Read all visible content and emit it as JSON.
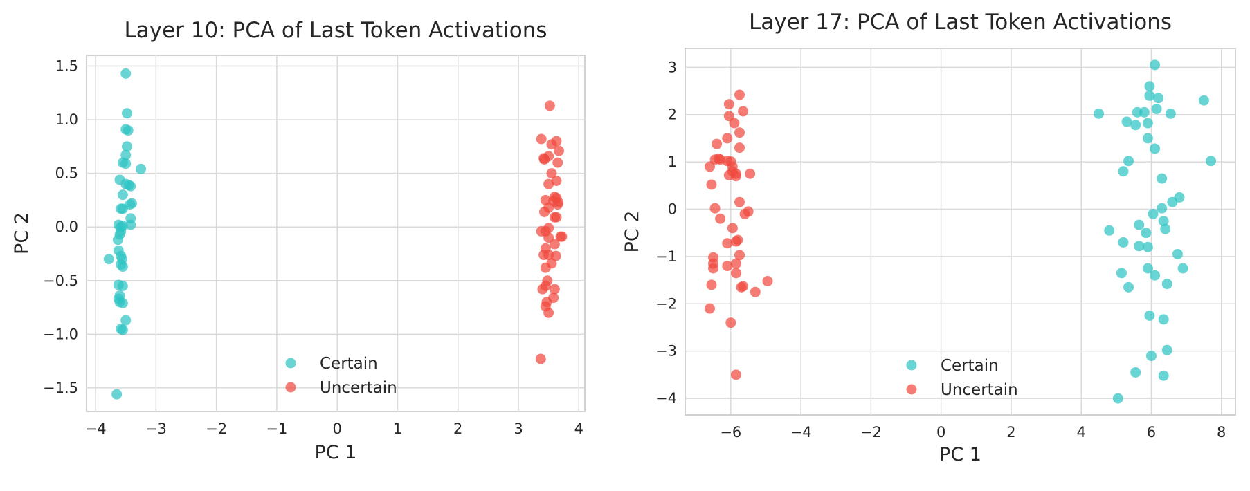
{
  "chart_data": [
    {
      "type": "scatter",
      "title": "Layer 10: PCA of Last Token Activations",
      "xlabel": "PC 1",
      "ylabel": "PC 2",
      "xlim": [
        -4.15,
        4.1
      ],
      "ylim": [
        -1.72,
        1.6
      ],
      "xticks": [
        -4,
        -3,
        -2,
        -1,
        0,
        1,
        2,
        3,
        4
      ],
      "yticks": [
        -1.5,
        -1.0,
        -0.5,
        0.0,
        0.5,
        1.0,
        1.5
      ],
      "xtick_labels": [
        "−4",
        "−3",
        "−2",
        "−1",
        "0",
        "1",
        "2",
        "3",
        "4"
      ],
      "ytick_labels": [
        "−1.5",
        "−1.0",
        "−0.5",
        "0.0",
        "0.5",
        "1.0",
        "1.5"
      ],
      "grid": true,
      "legend": "bottom-center",
      "series": [
        {
          "name": "Certain",
          "color": "#2ec4c4",
          "points": [
            [
              -3.5,
              1.43
            ],
            [
              -3.48,
              1.06
            ],
            [
              -3.5,
              0.91
            ],
            [
              -3.46,
              0.9
            ],
            [
              -3.48,
              0.75
            ],
            [
              -3.5,
              0.67
            ],
            [
              -3.55,
              0.6
            ],
            [
              -3.5,
              0.59
            ],
            [
              -3.25,
              0.54
            ],
            [
              -3.6,
              0.44
            ],
            [
              -3.5,
              0.4
            ],
            [
              -3.45,
              0.39
            ],
            [
              -3.42,
              0.38
            ],
            [
              -3.55,
              0.3
            ],
            [
              -3.4,
              0.22
            ],
            [
              -3.43,
              0.21
            ],
            [
              -3.58,
              0.17
            ],
            [
              -3.55,
              0.17
            ],
            [
              -3.42,
              0.08
            ],
            [
              -3.62,
              0.02
            ],
            [
              -3.42,
              0.02
            ],
            [
              -3.55,
              0.01
            ],
            [
              -3.58,
              0.0
            ],
            [
              -3.58,
              -0.04
            ],
            [
              -3.6,
              -0.07
            ],
            [
              -3.63,
              -0.12
            ],
            [
              -3.62,
              -0.22
            ],
            [
              -3.58,
              -0.27
            ],
            [
              -3.78,
              -0.3
            ],
            [
              -3.56,
              -0.3
            ],
            [
              -3.58,
              -0.35
            ],
            [
              -3.55,
              -0.37
            ],
            [
              -3.62,
              -0.54
            ],
            [
              -3.55,
              -0.55
            ],
            [
              -3.6,
              -0.64
            ],
            [
              -3.62,
              -0.67
            ],
            [
              -3.6,
              -0.7
            ],
            [
              -3.55,
              -0.71
            ],
            [
              -3.5,
              -0.87
            ],
            [
              -3.58,
              -0.95
            ],
            [
              -3.55,
              -0.96
            ],
            [
              -3.65,
              -1.56
            ]
          ]
        },
        {
          "name": "Uncertain",
          "color": "#f04a3e",
          "points": [
            [
              3.52,
              1.13
            ],
            [
              3.38,
              0.82
            ],
            [
              3.63,
              0.8
            ],
            [
              3.55,
              0.77
            ],
            [
              3.67,
              0.71
            ],
            [
              3.5,
              0.66
            ],
            [
              3.42,
              0.64
            ],
            [
              3.43,
              0.63
            ],
            [
              3.65,
              0.6
            ],
            [
              3.55,
              0.5
            ],
            [
              3.63,
              0.43
            ],
            [
              3.5,
              0.4
            ],
            [
              3.6,
              0.28
            ],
            [
              3.63,
              0.27
            ],
            [
              3.45,
              0.25
            ],
            [
              3.58,
              0.24
            ],
            [
              3.66,
              0.23
            ],
            [
              3.65,
              0.21
            ],
            [
              3.5,
              0.18
            ],
            [
              3.43,
              0.14
            ],
            [
              3.6,
              0.09
            ],
            [
              3.63,
              0.09
            ],
            [
              3.5,
              -0.01
            ],
            [
              3.38,
              -0.04
            ],
            [
              3.45,
              -0.04
            ],
            [
              3.72,
              -0.09
            ],
            [
              3.7,
              -0.09
            ],
            [
              3.5,
              -0.1
            ],
            [
              3.6,
              -0.16
            ],
            [
              3.45,
              -0.2
            ],
            [
              3.42,
              -0.26
            ],
            [
              3.5,
              -0.26
            ],
            [
              3.62,
              -0.27
            ],
            [
              3.55,
              -0.34
            ],
            [
              3.45,
              -0.38
            ],
            [
              3.48,
              -0.5
            ],
            [
              3.45,
              -0.55
            ],
            [
              3.4,
              -0.58
            ],
            [
              3.6,
              -0.58
            ],
            [
              3.58,
              -0.66
            ],
            [
              3.47,
              -0.7
            ],
            [
              3.45,
              -0.74
            ],
            [
              3.5,
              -0.8
            ],
            [
              3.37,
              -1.23
            ]
          ]
        }
      ]
    },
    {
      "type": "scatter",
      "title": "Layer 17: PCA of Last Token Activations",
      "xlabel": "PC 1",
      "ylabel": "PC 2",
      "xlim": [
        -7.3,
        8.4
      ],
      "ylim": [
        -4.35,
        3.4
      ],
      "xticks": [
        -6,
        -4,
        -2,
        0,
        2,
        4,
        6,
        8
      ],
      "yticks": [
        -4,
        -3,
        -2,
        -1,
        0,
        1,
        2,
        3
      ],
      "xtick_labels": [
        "−6",
        "−4",
        "−2",
        "0",
        "2",
        "4",
        "6",
        "8"
      ],
      "ytick_labels": [
        "−4",
        "−3",
        "−2",
        "−1",
        "0",
        "1",
        "2",
        "3"
      ],
      "grid": true,
      "legend": "bottom-center",
      "series": [
        {
          "name": "Certain",
          "color": "#2ec4c4",
          "points": [
            [
              6.1,
              3.05
            ],
            [
              5.95,
              2.6
            ],
            [
              5.95,
              2.4
            ],
            [
              6.2,
              2.35
            ],
            [
              7.5,
              2.3
            ],
            [
              6.15,
              2.12
            ],
            [
              5.6,
              2.05
            ],
            [
              5.8,
              2.05
            ],
            [
              4.5,
              2.02
            ],
            [
              6.55,
              2.02
            ],
            [
              5.3,
              1.85
            ],
            [
              5.55,
              1.78
            ],
            [
              5.9,
              1.82
            ],
            [
              5.9,
              1.5
            ],
            [
              6.1,
              1.28
            ],
            [
              7.7,
              1.02
            ],
            [
              5.35,
              1.02
            ],
            [
              5.2,
              0.8
            ],
            [
              6.3,
              0.65
            ],
            [
              6.8,
              0.25
            ],
            [
              6.6,
              0.15
            ],
            [
              6.3,
              0.02
            ],
            [
              6.05,
              -0.1
            ],
            [
              6.35,
              -0.25
            ],
            [
              5.65,
              -0.33
            ],
            [
              4.8,
              -0.45
            ],
            [
              6.4,
              -0.42
            ],
            [
              5.85,
              -0.5
            ],
            [
              5.2,
              -0.7
            ],
            [
              5.65,
              -0.78
            ],
            [
              5.9,
              -0.8
            ],
            [
              6.75,
              -0.95
            ],
            [
              5.9,
              -1.25
            ],
            [
              6.9,
              -1.25
            ],
            [
              5.15,
              -1.35
            ],
            [
              6.1,
              -1.4
            ],
            [
              6.45,
              -1.58
            ],
            [
              5.35,
              -1.65
            ],
            [
              5.95,
              -2.25
            ],
            [
              6.35,
              -2.33
            ],
            [
              6.45,
              -2.98
            ],
            [
              6.0,
              -3.1
            ],
            [
              5.55,
              -3.45
            ],
            [
              6.35,
              -3.52
            ],
            [
              5.05,
              -4.0
            ]
          ]
        },
        {
          "name": "Uncertain",
          "color": "#f04a3e",
          "points": [
            [
              -5.75,
              2.42
            ],
            [
              -6.05,
              2.22
            ],
            [
              -5.65,
              2.07
            ],
            [
              -6.05,
              1.97
            ],
            [
              -5.9,
              1.82
            ],
            [
              -5.75,
              1.62
            ],
            [
              -6.1,
              1.5
            ],
            [
              -6.4,
              1.38
            ],
            [
              -5.75,
              1.3
            ],
            [
              -6.35,
              1.07
            ],
            [
              -6.45,
              1.05
            ],
            [
              -6.3,
              1.05
            ],
            [
              -6.1,
              1.02
            ],
            [
              -6.0,
              1.01
            ],
            [
              -5.95,
              0.9
            ],
            [
              -6.6,
              0.9
            ],
            [
              -5.95,
              0.8
            ],
            [
              -5.45,
              0.75
            ],
            [
              -5.85,
              0.75
            ],
            [
              -5.85,
              0.7
            ],
            [
              -6.05,
              0.72
            ],
            [
              -6.55,
              0.52
            ],
            [
              -5.75,
              0.15
            ],
            [
              -6.45,
              0.02
            ],
            [
              -5.5,
              -0.05
            ],
            [
              -5.6,
              -0.1
            ],
            [
              -6.3,
              -0.2
            ],
            [
              -5.95,
              -0.4
            ],
            [
              -5.8,
              -0.65
            ],
            [
              -5.85,
              -0.68
            ],
            [
              -6.1,
              -0.72
            ],
            [
              -5.75,
              -0.97
            ],
            [
              -6.5,
              -1.02
            ],
            [
              -6.5,
              -1.15
            ],
            [
              -5.85,
              -1.15
            ],
            [
              -6.1,
              -1.2
            ],
            [
              -6.5,
              -1.25
            ],
            [
              -5.85,
              -1.35
            ],
            [
              -4.95,
              -1.52
            ],
            [
              -6.55,
              -1.6
            ],
            [
              -5.65,
              -1.63
            ],
            [
              -5.7,
              -1.65
            ],
            [
              -5.3,
              -1.75
            ],
            [
              -6.6,
              -2.1
            ],
            [
              -6.0,
              -2.4
            ],
            [
              -5.85,
              -3.5
            ]
          ]
        }
      ]
    }
  ]
}
